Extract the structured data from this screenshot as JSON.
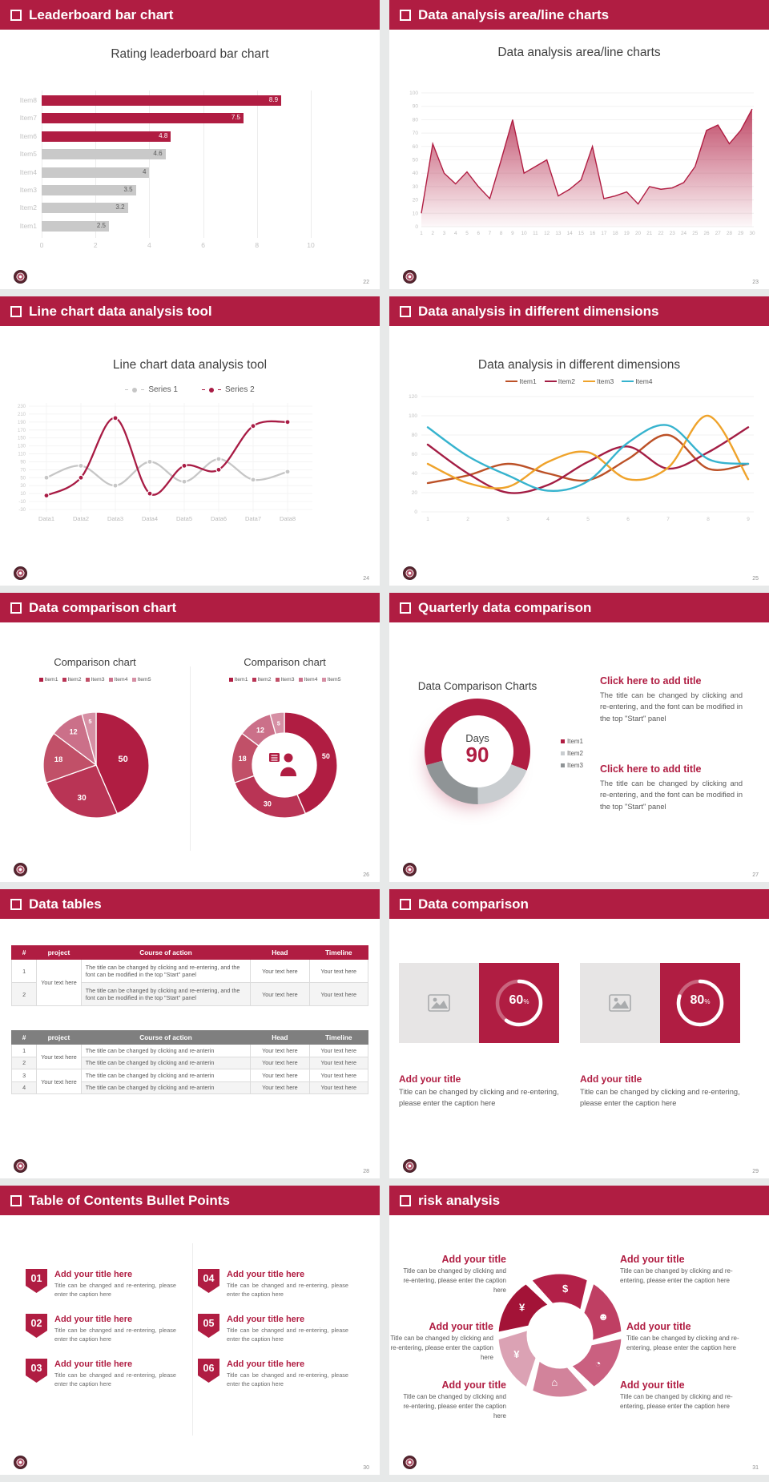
{
  "theme": {
    "accent": "#b01d42",
    "bar_gray": "#c9c9c9",
    "text_dark": "#3f3f3f",
    "text_gray": "#595959",
    "axis_gray": "#c2c2c2",
    "pie_shades": [
      "#b01d42",
      "#b93455",
      "#c15068",
      "#cb7089",
      "#d68fa4"
    ],
    "wheel_shades": [
      "#a31337",
      "#b22048",
      "#bf3f63",
      "#ca6080",
      "#d2839b",
      "#dba2b4"
    ]
  },
  "slides": [
    {
      "id": "leaderboard-bar-chart",
      "header": "Leaderboard bar chart",
      "page_number": "22",
      "title": "Rating leaderboard bar chart"
    },
    {
      "id": "area-line-charts",
      "header": "Data analysis area/line charts",
      "page_number": "23",
      "title": "Data analysis area/line charts"
    },
    {
      "id": "line-chart-tool",
      "header": "Line chart data analysis tool",
      "page_number": "24",
      "title": "Line chart data analysis tool"
    },
    {
      "id": "different-dimensions",
      "header": "Data analysis in different dimensions",
      "page_number": "25",
      "title": "Data analysis in different dimensions"
    },
    {
      "id": "data-comparison-chart",
      "header": "Data comparison chart",
      "page_number": "26",
      "pie_title": "Comparison chart",
      "donut_title": "Comparison chart",
      "center_icon": "presenter-icon"
    },
    {
      "id": "quarterly-data-comparison",
      "header": "Quarterly data comparison",
      "page_number": "27",
      "title": "Data Comparison Charts",
      "days_label": "Days",
      "days_value": "90",
      "blocks": [
        {
          "title": "Click here to add title",
          "body": "The title can be changed by clicking and re-entering, and the font can be modified in the top \"Start\" panel"
        },
        {
          "title": "Click here to add title",
          "body": "The title can be changed by clicking and re-entering, and the font can be modified in the top \"Start\" panel"
        }
      ]
    },
    {
      "id": "data-tables",
      "header": "Data tables",
      "page_number": "28"
    },
    {
      "id": "data-comparison",
      "header": "Data comparison",
      "page_number": "29",
      "cards": [
        {
          "percent": "60",
          "unit": "%",
          "icon": "image-placeholder-icon",
          "title": "Add your title",
          "caption": "Title can be changed by clicking and re-entering, please enter the caption here"
        },
        {
          "percent": "80",
          "unit": "%",
          "icon": "image-placeholder-icon",
          "title": "Add your title",
          "caption": "Title can be changed by clicking and re-entering, please enter the caption here"
        }
      ]
    },
    {
      "id": "table-of-contents",
      "header": "Table of Contents Bullet Points",
      "page_number": "30",
      "items": [
        {
          "num": "01",
          "title": "Add your title here",
          "caption": "Title can be changed and re-entering, please enter the caption here"
        },
        {
          "num": "02",
          "title": "Add your title here",
          "caption": "Title can be changed and re-entering, please enter the caption here"
        },
        {
          "num": "03",
          "title": "Add your title here",
          "caption": "Title can be changed and re-entering, please enter the caption here"
        },
        {
          "num": "04",
          "title": "Add your title here",
          "caption": "Title can be changed and re-entering, please enter the caption here"
        },
        {
          "num": "05",
          "title": "Add your title here",
          "caption": "Title can be changed and re-entering, please enter the caption here"
        },
        {
          "num": "06",
          "title": "Add your title here",
          "caption": "Title can be changed and re-entering, please enter the caption here"
        }
      ]
    },
    {
      "id": "risk-analysis",
      "header": "risk analysis",
      "page_number": "31",
      "icons": [
        "money-bag-icon",
        "coins-icon",
        "people-icon",
        "pie-chart-icon",
        "building-icon",
        "hand-money-icon"
      ],
      "blocks": [
        {
          "pos": "top-left",
          "title": "Add your title",
          "caption": "Title can be changed by clicking and re-entering, please enter the caption here"
        },
        {
          "pos": "top-right",
          "title": "Add your title",
          "caption": "Title can be changed by clicking and re-entering, please enter the caption here"
        },
        {
          "pos": "middle-left",
          "title": "Add your title",
          "caption": "Title can be changed by clicking and re-entering, please enter the caption here"
        },
        {
          "pos": "middle-right",
          "title": "Add your title",
          "caption": "Title can be changed by clicking and re-entering, please enter the caption here"
        },
        {
          "pos": "bottom-left",
          "title": "Add your title",
          "caption": "Title can be changed by clicking and re-entering, please enter the caption here"
        },
        {
          "pos": "bottom-right",
          "title": "Add your title",
          "caption": "Title can be changed by clicking and re-entering, please enter the caption here"
        }
      ]
    }
  ],
  "chart_data": [
    {
      "slide": "leaderboard-bar-chart",
      "type": "bar",
      "orientation": "horizontal",
      "title": "Rating leaderboard bar chart",
      "categories": [
        "Item8",
        "Item7",
        "Item6",
        "Item5",
        "Item4",
        "Item3",
        "Item2",
        "Item1"
      ],
      "values": [
        8.9,
        7.5,
        4.8,
        4.6,
        4,
        3.5,
        3.2,
        2.5
      ],
      "highlight_crimson_count": 3,
      "xlim": [
        0,
        10
      ],
      "xticks": [
        0,
        2,
        4,
        6,
        8,
        10
      ],
      "grid": true
    },
    {
      "slide": "area-line-charts",
      "type": "area",
      "title": "Data analysis area/line charts",
      "x": [
        1,
        2,
        3,
        4,
        5,
        6,
        7,
        8,
        9,
        10,
        11,
        12,
        13,
        14,
        15,
        16,
        17,
        18,
        19,
        20,
        21,
        22,
        23,
        24,
        25,
        26,
        27,
        28,
        29,
        30
      ],
      "values": [
        10,
        62,
        40,
        32,
        41,
        30,
        21,
        50,
        80,
        40,
        45,
        50,
        23,
        28,
        35,
        60,
        21,
        23,
        26,
        17,
        30,
        28,
        29,
        33,
        45,
        72,
        76,
        62,
        72,
        88
      ],
      "ylim": [
        0,
        100
      ],
      "ytick_step": 10,
      "grid": true
    },
    {
      "slide": "line-chart-tool",
      "type": "line",
      "title": "Line chart data analysis tool",
      "categories": [
        "Data1",
        "Data2",
        "Data3",
        "Data4",
        "Data5",
        "Data6",
        "Data7",
        "Data8"
      ],
      "series": [
        {
          "name": "Series 1",
          "color": "#c6c6c6",
          "values": [
            50,
            80,
            30,
            90,
            40,
            97,
            45,
            65
          ]
        },
        {
          "name": "Series 2",
          "color": "#a81b44",
          "values": [
            5,
            50,
            200,
            10,
            80,
            70,
            180,
            190
          ]
        }
      ],
      "ylim": [
        -30,
        230
      ],
      "ytick_step": 20,
      "markers": true,
      "legend_position": "top"
    },
    {
      "slide": "different-dimensions",
      "type": "line",
      "title": "Data analysis in different dimensions",
      "x": [
        1,
        2,
        3,
        4,
        5,
        6,
        7,
        8,
        9
      ],
      "series": [
        {
          "name": "Item1",
          "color": "#bc5127",
          "values": [
            30,
            38,
            50,
            40,
            33,
            55,
            80,
            45,
            50
          ]
        },
        {
          "name": "Item2",
          "color": "#a31d44",
          "values": [
            70,
            40,
            20,
            28,
            52,
            68,
            45,
            62,
            88
          ]
        },
        {
          "name": "Item3",
          "color": "#efa32b",
          "values": [
            50,
            30,
            26,
            52,
            62,
            34,
            46,
            100,
            34
          ]
        },
        {
          "name": "Item4",
          "color": "#36b3ce",
          "values": [
            88,
            58,
            38,
            22,
            32,
            72,
            90,
            55,
            50
          ]
        }
      ],
      "ylim": [
        0,
        120
      ],
      "ytick_step": 20,
      "legend_position": "top"
    },
    {
      "slide": "data-comparison-chart",
      "type": "pie",
      "title": "Comparison chart",
      "labels": [
        "Item1",
        "Item2",
        "Item3",
        "Item4",
        "Item5"
      ],
      "values": [
        50,
        30,
        18,
        12,
        5
      ]
    },
    {
      "slide": "data-comparison-chart",
      "type": "donut",
      "title": "Comparison chart",
      "labels": [
        "Item1",
        "Item2",
        "Item3",
        "Item4",
        "Item5"
      ],
      "values": [
        50,
        30,
        18,
        12,
        5
      ],
      "center_icon": "presenter-icon"
    },
    {
      "slide": "quarterly-data-comparison",
      "type": "donut",
      "title": "Data Comparison Charts",
      "labels": [
        "Item1",
        "Item2",
        "Item3"
      ],
      "values": [
        60,
        19,
        21
      ],
      "colors": [
        "#b01d42",
        "#c9cdd0",
        "#8f9496"
      ],
      "center_text": [
        "Days",
        "90"
      ]
    },
    {
      "slide": "data-tables",
      "type": "table",
      "style": "crimson-header",
      "columns": [
        "#",
        "project",
        "Course of action",
        "Head",
        "Timeline"
      ],
      "rows": [
        [
          "1",
          "Your text here",
          "The title can be changed by clicking and re-entering, and the font can be modified in the top \"Start\" panel",
          "Your text here",
          "Your text here"
        ],
        [
          "2",
          "",
          "The title can be changed by clicking and re-entering, and the font can be modified in the top \"Start\" panel",
          "Your text here",
          "Your text here"
        ]
      ],
      "merged_project_rows": [
        [
          0,
          1
        ]
      ]
    },
    {
      "slide": "data-tables",
      "type": "table",
      "style": "gray-header",
      "columns": [
        "#",
        "project",
        "Course of action",
        "Head",
        "Timeline"
      ],
      "rows": [
        [
          "1",
          "Your text here",
          "The title can be changed by clicking and re-anterin",
          "Your text here",
          "Your text here"
        ],
        [
          "2",
          "",
          "The title can be changed by clicking and re-anterin",
          "Your text here",
          "Your text here"
        ],
        [
          "3",
          "Your text here",
          "The title can be changed by clicking and re-anterin",
          "Your text here",
          "Your text here"
        ],
        [
          "4",
          "",
          "The title can be changed by clicking and re-anterin",
          "Your text here",
          "Your text here"
        ]
      ],
      "merged_project_rows": [
        [
          0,
          1
        ],
        [
          2,
          3
        ]
      ]
    },
    {
      "slide": "data-comparison",
      "type": "progress",
      "values": [
        60,
        80
      ],
      "unit": "%"
    }
  ]
}
